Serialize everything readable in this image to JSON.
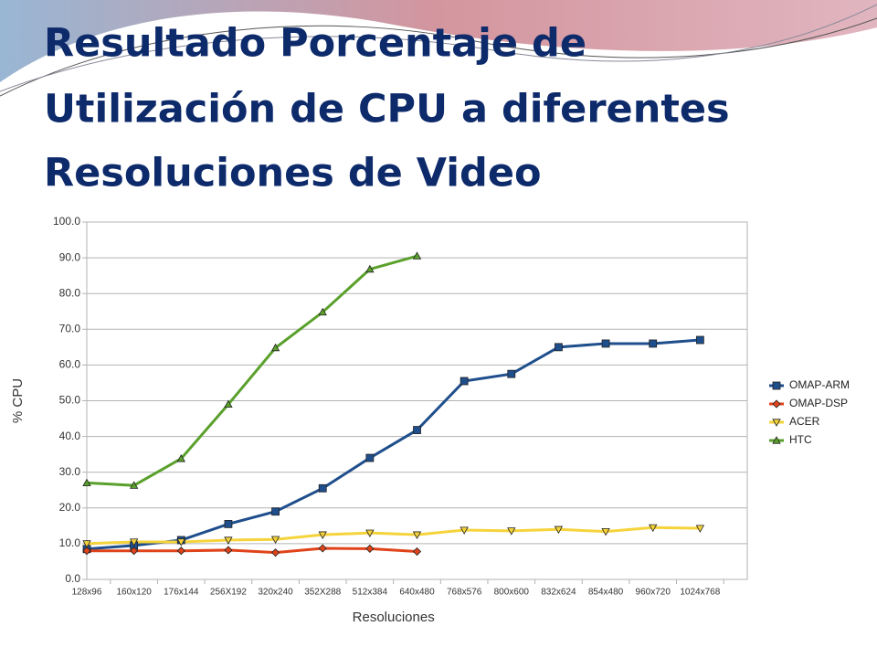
{
  "title": [
    "Resultado Porcentaje de",
    "Utilización de CPU a diferentes",
    "Resoluciones de Video"
  ],
  "chart_data": {
    "type": "line",
    "x_label": "Resoluciones",
    "y_label": "% CPU",
    "categories": [
      "128x96",
      "160x120",
      "176x144",
      "256X192",
      "320x240",
      "352X288",
      "512x384",
      "640x480",
      "768x576",
      "800x600",
      "832x624",
      "854x480",
      "960x720",
      "1024x768"
    ],
    "series": [
      {
        "name": "OMAP-ARM",
        "color": "#1f4e8c",
        "marker": "square",
        "values": [
          8.5,
          9.5,
          11,
          15.5,
          19,
          25.5,
          34,
          41.8,
          55.5,
          57.5,
          65,
          66,
          66,
          67
        ]
      },
      {
        "name": "OMAP-DSP",
        "color": "#e0431a",
        "marker": "diamond",
        "values": [
          8,
          8,
          8,
          8.2,
          7.5,
          8.7,
          8.6,
          7.8,
          null,
          null,
          null,
          null,
          null,
          null
        ]
      },
      {
        "name": "ACER",
        "color": "#f5d33b",
        "marker": "triangle-down",
        "values": [
          10,
          10.5,
          10.5,
          11,
          11.2,
          12.5,
          13,
          12.5,
          13.8,
          13.6,
          14,
          13.4,
          14.5,
          14.3
        ]
      },
      {
        "name": "HTC",
        "color": "#5aa02c",
        "marker": "triangle-up",
        "values": [
          27,
          26.3,
          33.8,
          49,
          64.8,
          74.8,
          86.8,
          90.5,
          null,
          null,
          null,
          null,
          null,
          null
        ]
      }
    ],
    "ylim": [
      0,
      100
    ],
    "yticks": [
      {
        "value": 0,
        "label": "0.0"
      },
      {
        "value": 10,
        "label": "10.0"
      },
      {
        "value": 20,
        "label": "20.0"
      },
      {
        "value": 30,
        "label": "30.0"
      },
      {
        "value": 40,
        "label": "40.0"
      },
      {
        "value": 50,
        "label": "50.0"
      },
      {
        "value": 60,
        "label": "60.0"
      },
      {
        "value": 70,
        "label": "70.0"
      },
      {
        "value": 80,
        "label": "80.0"
      },
      {
        "value": 90,
        "label": "90.0"
      },
      {
        "value": 100,
        "label": "100.0"
      }
    ],
    "grid": true,
    "legend": "right"
  }
}
